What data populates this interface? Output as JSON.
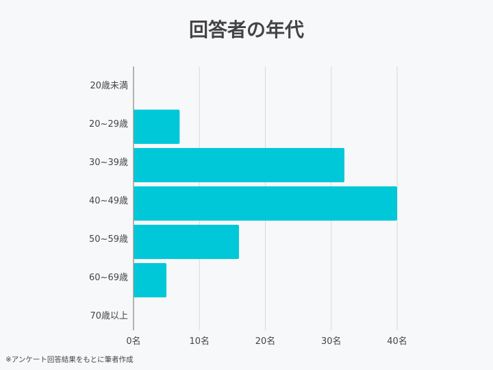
{
  "page": {
    "title": "回答者の年代",
    "footnote": "※アンケート回答結果をもとに筆者作成"
  },
  "colors": {
    "bar": "#00c8d8",
    "grid": "#d8d8d8",
    "axis": "#999999",
    "text": "#444444",
    "background": "#f7f8fa"
  },
  "chart_data": {
    "type": "bar",
    "orientation": "horizontal",
    "title": "回答者の年代",
    "categories": [
      "20歳未満",
      "20~29歳",
      "30~39歳",
      "40~49歳",
      "50~59歳",
      "60~69歳",
      "70歳以上"
    ],
    "values": [
      0,
      7,
      32,
      40,
      16,
      5,
      0
    ],
    "xlim": [
      0,
      40
    ],
    "x_ticks": [
      0,
      10,
      20,
      30,
      40
    ],
    "x_tick_labels": [
      "0名",
      "10名",
      "20名",
      "30名",
      "40名"
    ],
    "grid": true,
    "legend": "none"
  }
}
